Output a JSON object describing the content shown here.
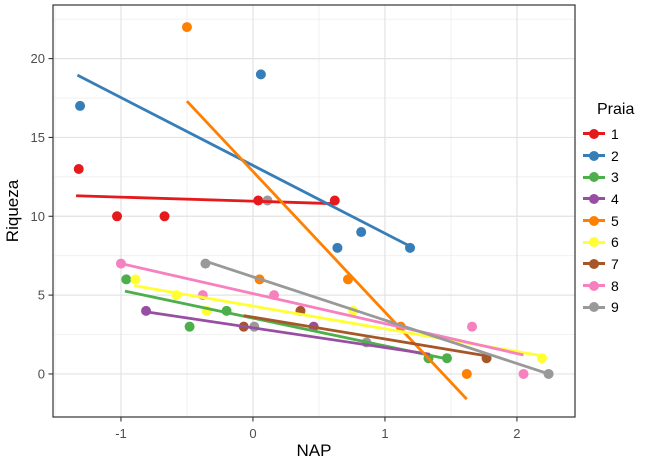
{
  "chart_data": {
    "type": "scatter",
    "title": "",
    "xlabel": "NAP",
    "ylabel": "Riqueza",
    "xlim": [
      -1.515,
      2.44
    ],
    "ylim": [
      -2.73,
      23.4
    ],
    "x_ticks": [
      -1,
      0,
      1,
      2
    ],
    "y_ticks": [
      0,
      5,
      10,
      15,
      20
    ],
    "x_minor_ticks": [
      -1.5,
      -0.5,
      0.5,
      1.5
    ],
    "y_minor_ticks": [
      2.5,
      7.5,
      12.5,
      17.5,
      22.5
    ],
    "grid": "major+minor",
    "panel_style": "theme_bw",
    "legend_title": "Praia",
    "legend_position": "right",
    "series": [
      {
        "name": "1",
        "color": "#E41A1C",
        "points": [
          [
            -1.32,
            13
          ],
          [
            -1.03,
            10
          ],
          [
            -0.67,
            10
          ],
          [
            0.04,
            11
          ],
          [
            0.62,
            11
          ]
        ],
        "trend_line": {
          "x1": -1.34,
          "y1": 11.3,
          "x2": 0.62,
          "y2": 10.8
        }
      },
      {
        "name": "2",
        "color": "#377EB8",
        "points": [
          [
            -1.31,
            17
          ],
          [
            0.06,
            19
          ],
          [
            0.64,
            8
          ],
          [
            0.82,
            9
          ],
          [
            1.19,
            8
          ]
        ],
        "trend_line": {
          "x1": -1.33,
          "y1": 18.95,
          "x2": 1.19,
          "y2": 8.1
        }
      },
      {
        "name": "3",
        "color": "#4DAF4A",
        "points": [
          [
            -0.96,
            6
          ],
          [
            -0.48,
            3
          ],
          [
            -0.2,
            4
          ],
          [
            1.33,
            1
          ],
          [
            1.47,
            1
          ]
        ],
        "trend_line": {
          "x1": -0.97,
          "y1": 5.25,
          "x2": 1.5,
          "y2": 0.9
        }
      },
      {
        "name": "4",
        "color": "#984EA3",
        "points": [
          [
            -0.81,
            4
          ],
          [
            0.46,
            3
          ]
        ],
        "trend_line": {
          "x1": -0.82,
          "y1": 3.95,
          "x2": 1.34,
          "y2": 1.25
        }
      },
      {
        "name": "5",
        "color": "#FF7F00",
        "points": [
          [
            -0.5,
            22
          ],
          [
            0.05,
            6
          ],
          [
            0.72,
            6
          ],
          [
            1.12,
            3
          ],
          [
            1.62,
            0
          ]
        ],
        "trend_line": {
          "x1": -0.5,
          "y1": 17.3,
          "x2": 1.62,
          "y2": -1.6
        }
      },
      {
        "name": "6",
        "color": "#FFFF33",
        "points": [
          [
            -0.89,
            6
          ],
          [
            -0.58,
            5
          ],
          [
            -0.35,
            4
          ],
          [
            0.76,
            4
          ],
          [
            2.19,
            1
          ]
        ],
        "trend_line": {
          "x1": -0.9,
          "y1": 5.6,
          "x2": 2.19,
          "y2": 1.15
        }
      },
      {
        "name": "7",
        "color": "#A65628",
        "points": [
          [
            -0.07,
            3
          ],
          [
            0.36,
            4
          ],
          [
            1.77,
            1
          ]
        ],
        "trend_line": {
          "x1": -0.07,
          "y1": 3.7,
          "x2": 1.77,
          "y2": 1.15
        }
      },
      {
        "name": "8",
        "color": "#F781BF",
        "points": [
          [
            -1.0,
            7
          ],
          [
            -0.38,
            5
          ],
          [
            0.16,
            5
          ],
          [
            1.66,
            3
          ],
          [
            2.05,
            0
          ]
        ],
        "trend_line": {
          "x1": -1.0,
          "y1": 7.0,
          "x2": 2.05,
          "y2": 1.2
        }
      },
      {
        "name": "9",
        "color": "#999999",
        "points": [
          [
            -0.36,
            7
          ],
          [
            0.11,
            11
          ],
          [
            0.01,
            3
          ],
          [
            0.86,
            2
          ],
          [
            2.24,
            0
          ]
        ],
        "trend_line": {
          "x1": -0.36,
          "y1": 7.15,
          "x2": 2.26,
          "y2": -0.05
        }
      }
    ]
  },
  "style": {
    "background": "#ffffff",
    "panel_border_color": "#333333",
    "grid_major_color": "#e3e3e3",
    "grid_minor_color": "#efefef",
    "tick_color": "#333333",
    "tick_label_color": "#4d4d4d",
    "point_radius": 5,
    "line_width": 2.8
  }
}
